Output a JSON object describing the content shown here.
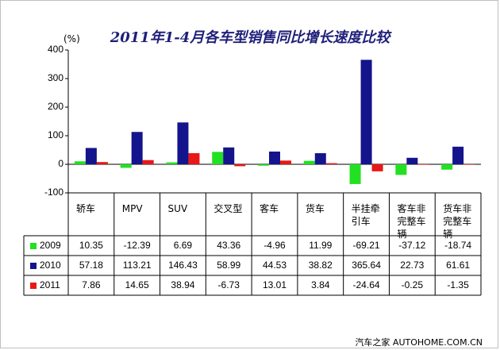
{
  "chart_data": {
    "type": "bar",
    "title": "2011年1-4月各车型销售同比增长速度比较",
    "ylabel": "(%)",
    "ylim": [
      -100,
      400
    ],
    "yticks": [
      "400",
      "300",
      "200",
      "100",
      "0",
      "-100"
    ],
    "categories": [
      "轿车",
      "MPV",
      "SUV",
      "交叉型",
      "客车",
      "货车",
      "半挂牵引车",
      "客车非完整车辆",
      "货车非完整车辆"
    ],
    "series": [
      {
        "name": "2009",
        "color": "#22e022",
        "values": [
          10.35,
          -12.39,
          6.69,
          43.36,
          -4.96,
          11.99,
          -69.21,
          -37.12,
          -18.74
        ]
      },
      {
        "name": "2010",
        "color": "#14148c",
        "values": [
          57.18,
          113.21,
          146.43,
          58.99,
          44.53,
          38.82,
          365.64,
          22.73,
          61.61
        ]
      },
      {
        "name": "2011",
        "color": "#e81818",
        "values": [
          7.86,
          14.65,
          38.94,
          -6.73,
          13.01,
          3.84,
          -24.64,
          -0.25,
          -1.35
        ]
      }
    ],
    "table_values": [
      [
        "10.35",
        "-12.39",
        "6.69",
        "43.36",
        "-4.96",
        "11.99",
        "-69.21",
        "-37.12",
        "-18.74"
      ],
      [
        "57.18",
        "113.21",
        "146.43",
        "58.99",
        "44.53",
        "38.82",
        "365.64",
        "22.73",
        "61.61"
      ],
      [
        "7.86",
        "14.65",
        "38.94",
        "-6.73",
        "13.01",
        "3.84",
        "-24.64",
        "-0.25",
        "-1.35"
      ]
    ],
    "grid": false,
    "legend": "data-table-rows"
  },
  "watermark": "汽车之家 AUTOHOME.COM.CN"
}
